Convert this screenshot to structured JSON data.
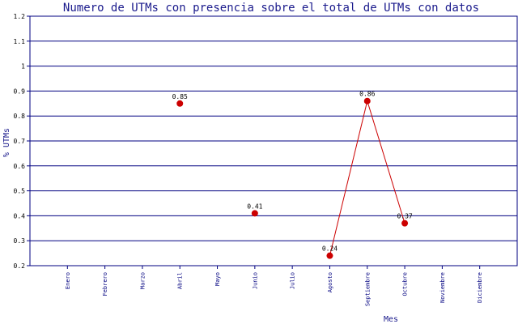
{
  "colors": {
    "frame": "#000080",
    "grid": "#000080",
    "line": "#cc0000",
    "marker": "#cc0000",
    "title": "#1a1a8c"
  },
  "chart_data": {
    "type": "line",
    "title": "Numero de UTMs con presencia sobre el total de UTMs con datos",
    "xlabel": "Mes",
    "ylabel": "% UTMs",
    "categories": [
      "Enero",
      "Febrero",
      "Marzo",
      "Abril",
      "Mayo",
      "Junio",
      "Julio",
      "Agosto",
      "Septiembre",
      "Octubre",
      "Noviembre",
      "Diciembre"
    ],
    "series": [
      {
        "values": [
          null,
          null,
          null,
          0.85,
          null,
          0.41,
          null,
          0.24,
          0.86,
          0.37,
          null,
          null
        ],
        "labels": [
          "",
          "",
          "",
          "0.85",
          "",
          "0.41",
          "",
          "0.24",
          "0.86",
          "0.37",
          "",
          ""
        ]
      }
    ],
    "ylim": [
      0.2,
      1.2
    ],
    "yticks": [
      "0.2",
      "0.3",
      "0.4",
      "0.5",
      "0.6",
      "0.7",
      "0.8",
      "0.9",
      "1",
      "1.1",
      "1.2"
    ],
    "grid": true,
    "legend": "none"
  }
}
